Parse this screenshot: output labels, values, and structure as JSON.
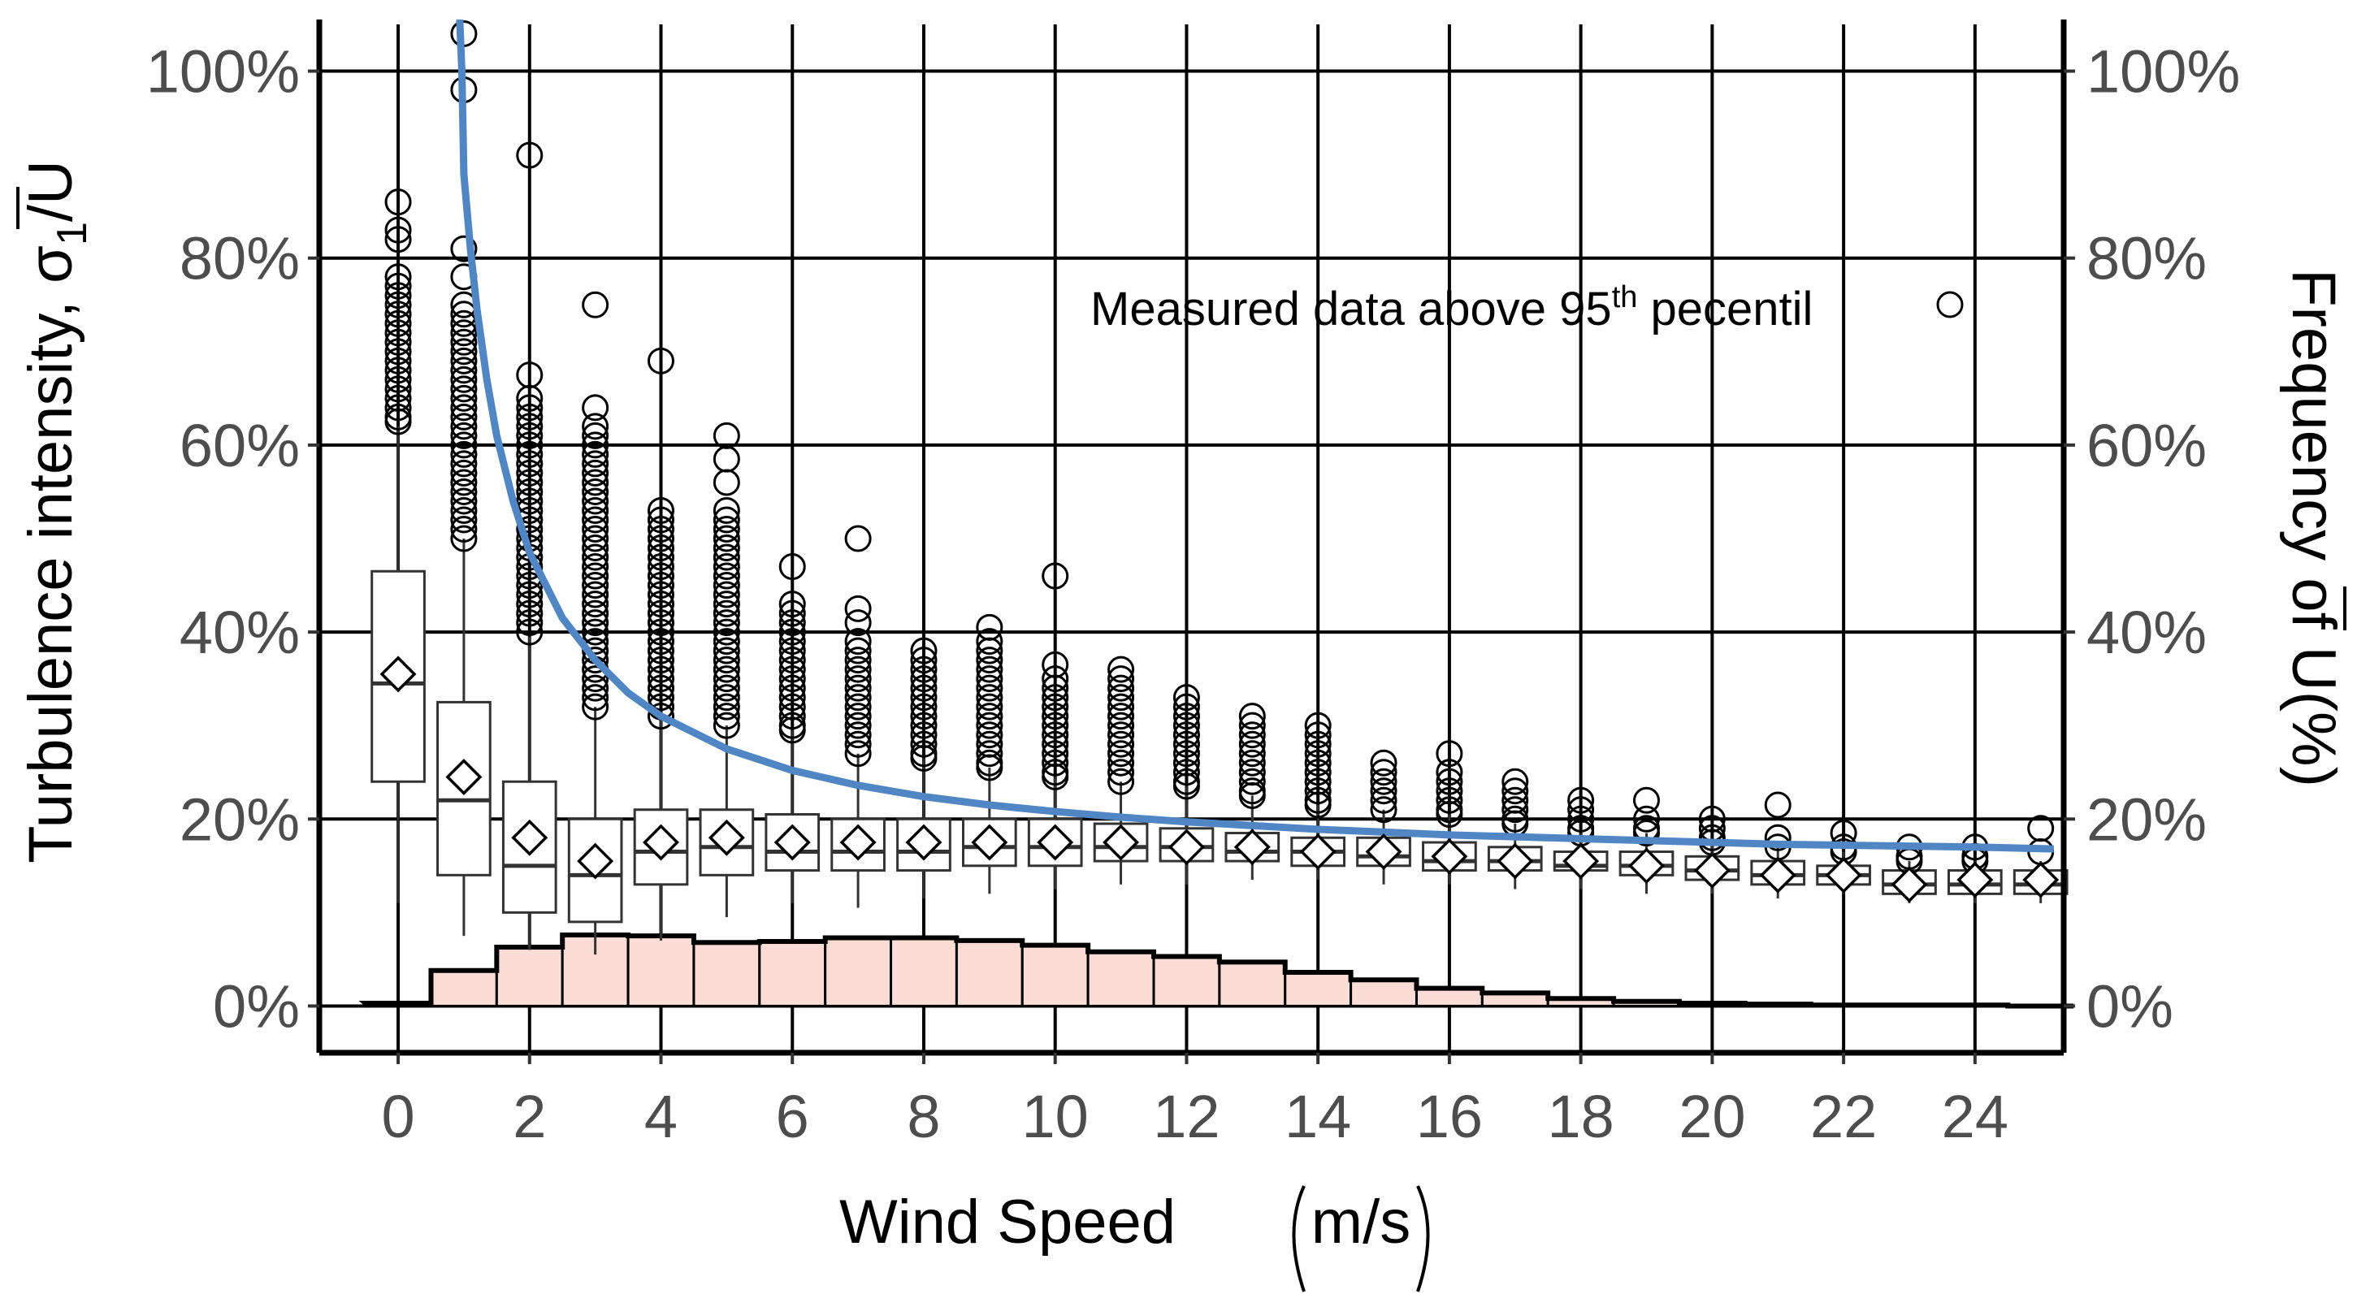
{
  "chart_data": {
    "type": "boxplot-with-histogram",
    "x": {
      "label": "Wind Speed",
      "unit": "m/s",
      "range": [
        -1.2,
        25.35
      ],
      "ticks": [
        0,
        2,
        4,
        6,
        8,
        10,
        12,
        14,
        16,
        18,
        20,
        22,
        24
      ]
    },
    "y_left": {
      "label_prefix": "Turbulence intensity, σ",
      "label_sub": "1",
      "label_suffix": "/U",
      "range": [
        -5,
        105
      ],
      "ticks": [
        0,
        20,
        40,
        60,
        80,
        100
      ],
      "tick_labels": [
        "0%",
        "20%",
        "40%",
        "60%",
        "80%",
        "100%"
      ]
    },
    "y_right": {
      "label_prefix": "Frequency of ",
      "label_bar": "U",
      "label_suffix": "(%)",
      "tick_labels": [
        "0%",
        "20%",
        "40%",
        "60%",
        "80%",
        "100%"
      ]
    },
    "legend": {
      "text": "Measured data above 95",
      "superscript": "th",
      "text_after": " pecentil",
      "position": "top-right"
    },
    "boxes": [
      {
        "x": 0,
        "q1": 24,
        "median": 34.5,
        "q3": 46.5,
        "mean": 35.5,
        "whisker_low": 11,
        "whisker_high": 62,
        "outliers": [
          62.5,
          63,
          64,
          65,
          66,
          67,
          68,
          69,
          70,
          71,
          72,
          73,
          74,
          75,
          76,
          77,
          78,
          82,
          83,
          86
        ]
      },
      {
        "x": 1,
        "q1": 14,
        "median": 22,
        "q3": 32.5,
        "mean": 24.5,
        "whisker_low": 7.5,
        "whisker_high": 50,
        "outliers": [
          50,
          51,
          52,
          53,
          54,
          55,
          56,
          57,
          58,
          59,
          60,
          61,
          62,
          63,
          64,
          65,
          66,
          67,
          68,
          69,
          70,
          71,
          72,
          73,
          74,
          75,
          78,
          81,
          98,
          104
        ]
      },
      {
        "x": 2,
        "q1": 10,
        "median": 15,
        "q3": 24,
        "mean": 18,
        "whisker_low": 6,
        "whisker_high": 39.5,
        "outliers": [
          40,
          41,
          42,
          43,
          44,
          45,
          46,
          47,
          48,
          49,
          50,
          51,
          52,
          53,
          54,
          55,
          56,
          57,
          58,
          59,
          60,
          61,
          62,
          63,
          64,
          65,
          67.5,
          91
        ]
      },
      {
        "x": 3,
        "q1": 9,
        "median": 14,
        "q3": 20,
        "mean": 15.5,
        "whisker_low": 5.5,
        "whisker_high": 32,
        "outliers": [
          32,
          33,
          34,
          35,
          36,
          37,
          38,
          39,
          40,
          41,
          42,
          43,
          44,
          45,
          46,
          47,
          48,
          49,
          50,
          51,
          52,
          53,
          54,
          55,
          56,
          57,
          58,
          59,
          60,
          61,
          62,
          64,
          75
        ]
      },
      {
        "x": 4,
        "q1": 13,
        "median": 16.5,
        "q3": 21,
        "mean": 17.5,
        "whisker_low": 7,
        "whisker_high": 31,
        "outliers": [
          31,
          32,
          33,
          34,
          35,
          36,
          37,
          38,
          39,
          40,
          41,
          42,
          43,
          44,
          45,
          46,
          47,
          48,
          49,
          50,
          51,
          52,
          53,
          69
        ]
      },
      {
        "x": 5,
        "q1": 14,
        "median": 17,
        "q3": 21,
        "mean": 18,
        "whisker_low": 9.5,
        "whisker_high": 30,
        "outliers": [
          30,
          31,
          32,
          33,
          34,
          35,
          36,
          37,
          38,
          39,
          40,
          41,
          42,
          43,
          44,
          45,
          46,
          47,
          48,
          49,
          50,
          51,
          52,
          53,
          56,
          58.5,
          61
        ]
      },
      {
        "x": 6,
        "q1": 14.5,
        "median": 16.5,
        "q3": 20.5,
        "mean": 17.5,
        "whisker_low": 11,
        "whisker_high": 29.5,
        "outliers": [
          29.5,
          30,
          31,
          32,
          33,
          34,
          35,
          36,
          37,
          38,
          39,
          40,
          41,
          42,
          43,
          47
        ]
      },
      {
        "x": 7,
        "q1": 14.5,
        "median": 16.5,
        "q3": 20,
        "mean": 17.5,
        "whisker_low": 10.5,
        "whisker_high": 27,
        "outliers": [
          27,
          28,
          29,
          30,
          31,
          32,
          33,
          34,
          35,
          36,
          37,
          38,
          39,
          41,
          42.5,
          50
        ]
      },
      {
        "x": 8,
        "q1": 14.5,
        "median": 16.5,
        "q3": 20,
        "mean": 17.5,
        "whisker_low": 11.5,
        "whisker_high": 26.5,
        "outliers": [
          26.5,
          27,
          28,
          29,
          30,
          31,
          32,
          33,
          34,
          35,
          36,
          37,
          38
        ]
      },
      {
        "x": 9,
        "q1": 15,
        "median": 17,
        "q3": 20,
        "mean": 17.5,
        "whisker_low": 12,
        "whisker_high": 25.5,
        "outliers": [
          25.5,
          26,
          27,
          28,
          29,
          30,
          31,
          32,
          33,
          34,
          35,
          36,
          37,
          38,
          39,
          40.5
        ]
      },
      {
        "x": 10,
        "q1": 15,
        "median": 17,
        "q3": 20,
        "mean": 17.5,
        "whisker_low": 12.5,
        "whisker_high": 24.5,
        "outliers": [
          24.5,
          25,
          26,
          27,
          28,
          29,
          30,
          31,
          32,
          33,
          34,
          35,
          36.5,
          46
        ]
      },
      {
        "x": 11,
        "q1": 15.5,
        "median": 17,
        "q3": 19.5,
        "mean": 17.5,
        "whisker_low": 13,
        "whisker_high": 24,
        "outliers": [
          24,
          25,
          26,
          27,
          28,
          29,
          30,
          31,
          32,
          33,
          34,
          35,
          36
        ]
      },
      {
        "x": 12,
        "q1": 15.5,
        "median": 17,
        "q3": 19,
        "mean": 17,
        "whisker_low": 13,
        "whisker_high": 23.5,
        "outliers": [
          23.5,
          24,
          25,
          26,
          27,
          28,
          29,
          30,
          31,
          32,
          33
        ]
      },
      {
        "x": 13,
        "q1": 15.5,
        "median": 16.5,
        "q3": 18.5,
        "mean": 17,
        "whisker_low": 13.5,
        "whisker_high": 22.5,
        "outliers": [
          22.5,
          23,
          24,
          25,
          26,
          27,
          28,
          29,
          30,
          31
        ]
      },
      {
        "x": 14,
        "q1": 15,
        "median": 16.5,
        "q3": 18,
        "mean": 16.5,
        "whisker_low": 13.5,
        "whisker_high": 21.5,
        "outliers": [
          21.5,
          22,
          23,
          24,
          25,
          26,
          27,
          28,
          29,
          30
        ]
      },
      {
        "x": 15,
        "q1": 15,
        "median": 16,
        "q3": 18,
        "mean": 16.5,
        "whisker_low": 13,
        "whisker_high": 21,
        "outliers": [
          21,
          22,
          23,
          24,
          25,
          26
        ]
      },
      {
        "x": 16,
        "q1": 14.5,
        "median": 15.5,
        "q3": 17.5,
        "mean": 16,
        "whisker_low": 13,
        "whisker_high": 20.5,
        "outliers": [
          20.5,
          21,
          22,
          23,
          24,
          25,
          27
        ]
      },
      {
        "x": 17,
        "q1": 14.5,
        "median": 15.5,
        "q3": 17,
        "mean": 15.5,
        "whisker_low": 12.5,
        "whisker_high": 19.5,
        "outliers": [
          19.5,
          20,
          21,
          22,
          23,
          24
        ]
      },
      {
        "x": 18,
        "q1": 14.5,
        "median": 15,
        "q3": 16.5,
        "mean": 15.5,
        "whisker_low": 12.5,
        "whisker_high": 18.5,
        "outliers": [
          18.5,
          19,
          20,
          21,
          22
        ]
      },
      {
        "x": 19,
        "q1": 14,
        "median": 15,
        "q3": 16.5,
        "mean": 15,
        "whisker_low": 12,
        "whisker_high": 18.5,
        "outliers": [
          18.5,
          19,
          20,
          22
        ]
      },
      {
        "x": 20,
        "q1": 13.5,
        "median": 14.5,
        "q3": 16,
        "mean": 14.5,
        "whisker_low": 12,
        "whisker_high": 17.5,
        "outliers": [
          17.5,
          18,
          19,
          20
        ]
      },
      {
        "x": 21,
        "q1": 13,
        "median": 14,
        "q3": 15.5,
        "mean": 14,
        "whisker_low": 11.5,
        "whisker_high": 17,
        "outliers": [
          17,
          18,
          21.5
        ]
      },
      {
        "x": 22,
        "q1": 13,
        "median": 14,
        "q3": 15,
        "mean": 14,
        "whisker_low": 12,
        "whisker_high": 16.5,
        "outliers": [
          16.5,
          17,
          18.5
        ]
      },
      {
        "x": 23,
        "q1": 12,
        "median": 13,
        "q3": 14.5,
        "mean": 13,
        "whisker_low": 11,
        "whisker_high": 15.5,
        "outliers": [
          15.5,
          16,
          17
        ]
      },
      {
        "x": 24,
        "q1": 12,
        "median": 13,
        "q3": 14.5,
        "mean": 13.5,
        "whisker_low": 11,
        "whisker_high": 15.5,
        "outliers": [
          15.5,
          16,
          17
        ]
      },
      {
        "x": 25,
        "q1": 12,
        "median": 13,
        "q3": 14.5,
        "mean": 13.5,
        "whisker_low": 11,
        "whisker_high": 15.5,
        "outliers": [
          16.5,
          19
        ]
      }
    ],
    "frequency": {
      "x": [
        0,
        1,
        2,
        3,
        4,
        5,
        6,
        7,
        8,
        9,
        10,
        11,
        12,
        13,
        14,
        15,
        16,
        17,
        18,
        19,
        20,
        21,
        22,
        23,
        24,
        25
      ],
      "values": [
        0.3,
        3.8,
        6.3,
        7.6,
        7.5,
        6.8,
        6.9,
        7.3,
        7.3,
        7.0,
        6.5,
        5.8,
        5.3,
        4.7,
        3.6,
        2.8,
        1.9,
        1.4,
        0.8,
        0.5,
        0.3,
        0.2,
        0.1,
        0.1,
        0.1,
        0.0
      ],
      "fill_color": "#fcdcd7",
      "edge_color": "#000000"
    },
    "reference_curve": {
      "color": "#4f86c3",
      "x": [
        1.0,
        1.05,
        1.1,
        1.2,
        1.35,
        1.5,
        1.75,
        2,
        2.5,
        3,
        3.5,
        4,
        5,
        6,
        7,
        8,
        9,
        10,
        11,
        12,
        13,
        14,
        15,
        16,
        17,
        18,
        19,
        20,
        21,
        22,
        23,
        24,
        25.2
      ],
      "y": [
        89,
        85,
        81,
        74.5,
        67,
        61,
        54,
        48.5,
        41.5,
        37,
        33.5,
        31,
        27.5,
        25.2,
        23.6,
        22.4,
        21.5,
        20.8,
        20.2,
        19.7,
        19.3,
        18.9,
        18.6,
        18.3,
        18.1,
        17.9,
        17.7,
        17.5,
        17.3,
        17.2,
        17.1,
        17.0,
        16.8
      ]
    }
  }
}
